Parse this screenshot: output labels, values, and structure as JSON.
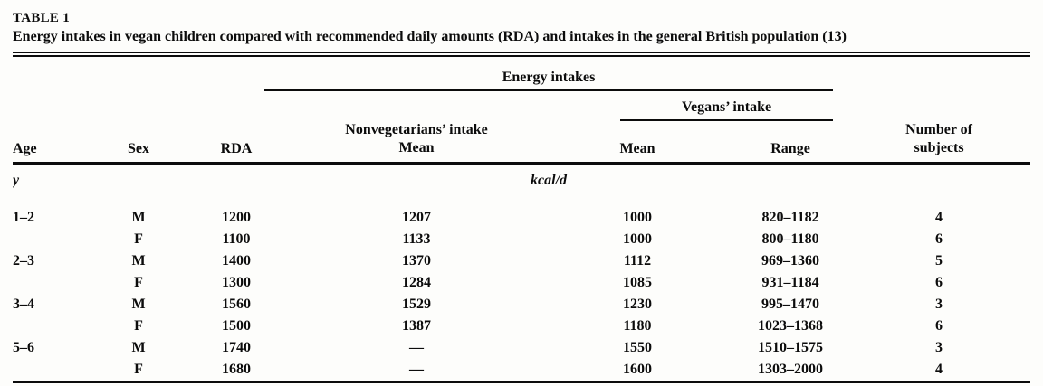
{
  "table": {
    "label": "TABLE 1",
    "caption": "Energy intakes in vegan children compared with recommended daily amounts (RDA) and intakes in the general British population (13)",
    "headers": {
      "energy_intakes": "Energy intakes",
      "vegans_intake": "Vegans’ intake",
      "nonvegetarians_intake": "Nonvegetarians’ intake",
      "nonveg_mean": "Mean",
      "number_of_line1": "Number of",
      "number_of_line2": "subjects",
      "age": "Age",
      "sex": "Sex",
      "rda": "RDA",
      "vegan_mean": "Mean",
      "vegan_range": "Range"
    },
    "units": {
      "age_unit": "y",
      "energy_unit": "kcal/d"
    },
    "rows": [
      {
        "age": "1–2",
        "sex": "M",
        "rda": "1200",
        "nonveg_mean": "1207",
        "vegan_mean": "1000",
        "vegan_range": "820–1182",
        "subjects": "4"
      },
      {
        "age": "",
        "sex": "F",
        "rda": "1100",
        "nonveg_mean": "1133",
        "vegan_mean": "1000",
        "vegan_range": "800–1180",
        "subjects": "6"
      },
      {
        "age": "2–3",
        "sex": "M",
        "rda": "1400",
        "nonveg_mean": "1370",
        "vegan_mean": "1112",
        "vegan_range": "969–1360",
        "subjects": "5"
      },
      {
        "age": "",
        "sex": "F",
        "rda": "1300",
        "nonveg_mean": "1284",
        "vegan_mean": "1085",
        "vegan_range": "931–1184",
        "subjects": "6"
      },
      {
        "age": "3–4",
        "sex": "M",
        "rda": "1560",
        "nonveg_mean": "1529",
        "vegan_mean": "1230",
        "vegan_range": "995–1470",
        "subjects": "3"
      },
      {
        "age": "",
        "sex": "F",
        "rda": "1500",
        "nonveg_mean": "1387",
        "vegan_mean": "1180",
        "vegan_range": "1023–1368",
        "subjects": "6"
      },
      {
        "age": "5–6",
        "sex": "M",
        "rda": "1740",
        "nonveg_mean": "—",
        "vegan_mean": "1550",
        "vegan_range": "1510–1575",
        "subjects": "3"
      },
      {
        "age": "",
        "sex": "F",
        "rda": "1680",
        "nonveg_mean": "—",
        "vegan_mean": "1600",
        "vegan_range": "1303–2000",
        "subjects": "4"
      }
    ],
    "colors": {
      "text": "#0c0c0c",
      "background": "#fdfdfb"
    }
  }
}
